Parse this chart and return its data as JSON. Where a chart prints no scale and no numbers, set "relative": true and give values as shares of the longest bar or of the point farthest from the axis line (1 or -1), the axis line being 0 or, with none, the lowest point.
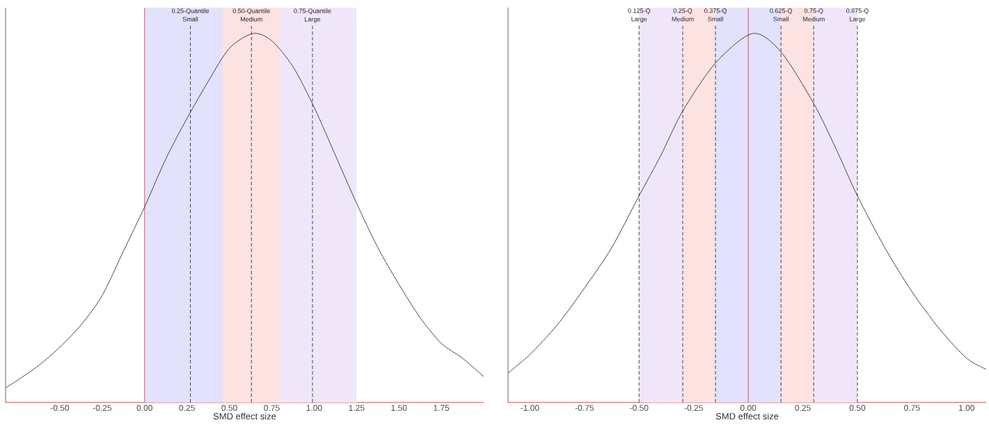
{
  "chart_data": [
    {
      "type": "line",
      "relative": true,
      "xlabel": "SMD effect size",
      "tick_labels": "x",
      "color": "#1a1a1a",
      "x": [
        -0.82,
        -0.75,
        -0.625,
        -0.5,
        -0.375,
        -0.25,
        -0.125,
        0,
        0.125,
        0.25,
        0.375,
        0.5,
        0.64,
        0.75,
        0.875,
        1.0,
        1.125,
        1.25,
        1.375,
        1.5,
        1.625,
        1.75,
        1.875,
        2.0
      ],
      "values": [
        0.04,
        0.06,
        0.1,
        0.15,
        0.21,
        0.29,
        0.41,
        0.53,
        0.66,
        0.77,
        0.87,
        0.96,
        1,
        0.98,
        0.91,
        0.8,
        0.67,
        0.54,
        0.42,
        0.32,
        0.23,
        0.16,
        0.12,
        0.07
      ],
      "xlim": [
        -0.82,
        2.0
      ],
      "xticks": [
        {
          "value": -0.5,
          "label": "-0.50"
        },
        {
          "value": -0.25,
          "label": "-0.25"
        },
        {
          "value": 0,
          "label": "0.00"
        },
        {
          "value": 0.25,
          "label": "0.25"
        },
        {
          "value": 0.5,
          "label": "0.50"
        },
        {
          "value": 0.75,
          "label": "0.75"
        },
        {
          "value": 1.0,
          "label": "1.00"
        },
        {
          "value": 1.25,
          "label": "1.25"
        },
        {
          "value": 1.5,
          "label": "1.50"
        },
        {
          "value": 1.75,
          "label": "1.75"
        }
      ],
      "bands": [
        {
          "axis": "x",
          "from": 0,
          "to": 0.46,
          "color": "#e2e2fd"
        },
        {
          "axis": "x",
          "from": 0.46,
          "to": 0.8,
          "color": "#fde2e2"
        },
        {
          "axis": "x",
          "from": 0.8,
          "to": 1.25,
          "color": "#efe7f9"
        }
      ],
      "ref_lines": [
        {
          "axis": "x",
          "value": 0,
          "color": "#ff0000",
          "line_style": "solid"
        },
        {
          "axis": "x",
          "value": 0.27,
          "label": "0.25-Quantile Small",
          "color": "#000000",
          "line_style": "dashed"
        },
        {
          "axis": "x",
          "value": 0.63,
          "label": "0.50-Quantile Medium",
          "color": "#000000",
          "line_style": "dashed"
        },
        {
          "axis": "x",
          "value": 0.99,
          "label": "0.75-Quantile Large",
          "color": "#000000",
          "line_style": "dashed"
        }
      ]
    },
    {
      "type": "line",
      "relative": true,
      "xlabel": "SMD effect size",
      "tick_labels": "x",
      "color": "#1a1a1a",
      "x": [
        -1.1,
        -1.0,
        -0.875,
        -0.75,
        -0.625,
        -0.5,
        -0.4,
        -0.3,
        -0.15,
        0.02,
        0.15,
        0.3,
        0.4,
        0.5,
        0.625,
        0.75,
        0.875,
        1.0,
        1.09
      ],
      "values": [
        0.08,
        0.13,
        0.21,
        0.31,
        0.42,
        0.56,
        0.67,
        0.79,
        0.92,
        1,
        0.95,
        0.81,
        0.69,
        0.56,
        0.42,
        0.3,
        0.2,
        0.12,
        0.09
      ],
      "xlim": [
        -1.1,
        1.09
      ],
      "xticks": [
        {
          "value": -1.0,
          "label": "-1.00"
        },
        {
          "value": -0.75,
          "label": "-0.75"
        },
        {
          "value": -0.5,
          "label": "-0.50"
        },
        {
          "value": -0.25,
          "label": "-0.25"
        },
        {
          "value": 0,
          "label": "0.00"
        },
        {
          "value": 0.25,
          "label": "0.25"
        },
        {
          "value": 0.5,
          "label": "0.50"
        },
        {
          "value": 0.75,
          "label": "0.75"
        },
        {
          "value": 1.0,
          "label": "1.00"
        }
      ],
      "bands": [
        {
          "axis": "x",
          "from": -0.5,
          "to": -0.3,
          "color": "#efe7f9"
        },
        {
          "axis": "x",
          "from": -0.3,
          "to": -0.15,
          "color": "#fde2e2"
        },
        {
          "axis": "x",
          "from": -0.15,
          "to": 0.15,
          "color": "#e2e2fd"
        },
        {
          "axis": "x",
          "from": 0.15,
          "to": 0.3,
          "color": "#fde2e2"
        },
        {
          "axis": "x",
          "from": 0.3,
          "to": 0.5,
          "color": "#efe7f9"
        }
      ],
      "ref_lines": [
        {
          "axis": "x",
          "value": -0.5,
          "label": "0.125-Q Large",
          "color": "#000000",
          "line_style": "dashed"
        },
        {
          "axis": "x",
          "value": -0.3,
          "label": "0.25-Q Medium",
          "color": "#000000",
          "line_style": "dashed"
        },
        {
          "axis": "x",
          "value": -0.15,
          "label": "0.375-Q Small",
          "color": "#000000",
          "line_style": "dashed"
        },
        {
          "axis": "x",
          "value": 0,
          "color": "#ff0000",
          "line_style": "solid"
        },
        {
          "axis": "x",
          "value": 0.15,
          "label": "0.625-Q Small",
          "color": "#000000",
          "line_style": "dashed"
        },
        {
          "axis": "x",
          "value": 0.3,
          "label": "0.75-Q Medium",
          "color": "#000000",
          "line_style": "dashed"
        },
        {
          "axis": "x",
          "value": 0.5,
          "label": "0.875-Q Large",
          "color": "#000000",
          "line_style": "dashed"
        }
      ]
    }
  ]
}
